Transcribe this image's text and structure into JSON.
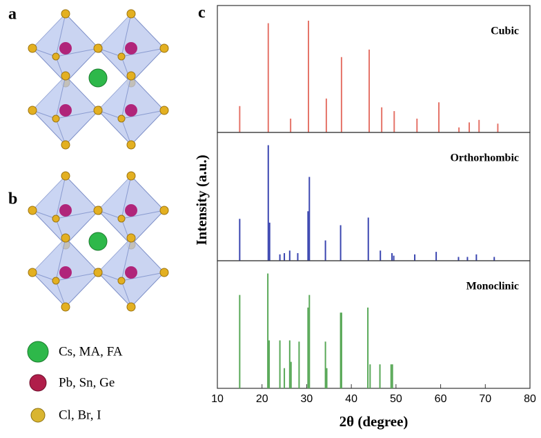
{
  "figure": {
    "panel_labels": [
      "a",
      "b",
      "c"
    ],
    "ylabel": "Intensity (a.u.)",
    "legend": [
      "Cs, MA, FA",
      "Pb, Sn, Ge",
      "Cl, Br, I"
    ]
  },
  "chart_data": [
    {
      "type": "stick",
      "title": "Cubic",
      "color": "#e57368",
      "x": [
        15.0,
        21.4,
        26.4,
        30.4,
        34.4,
        37.8,
        44.0,
        46.8,
        49.6,
        54.7,
        59.6,
        64.1,
        66.4,
        68.6,
        72.8
      ],
      "values": [
        21,
        87,
        11,
        89,
        27,
        60,
        66,
        20,
        17,
        11,
        24,
        4,
        8,
        10,
        7
      ],
      "xlim": [
        10,
        80
      ],
      "ylim": [
        0,
        100
      ]
    },
    {
      "type": "stick",
      "title": "Orthorhombic",
      "color": "#3a45b0",
      "x": [
        15.0,
        21.4,
        21.7,
        24.0,
        25.0,
        26.2,
        28.0,
        30.3,
        30.6,
        34.2,
        37.6,
        43.8,
        46.5,
        49.1,
        49.5,
        54.2,
        59.0,
        64.0,
        66.0,
        68.0,
        72.0
      ],
      "values": [
        33,
        91,
        30,
        5,
        6,
        8,
        6,
        39,
        66,
        16,
        28,
        34,
        8,
        6,
        4,
        5,
        7,
        3,
        3,
        5,
        3
      ],
      "xlim": [
        10,
        80
      ],
      "ylim": [
        0,
        100
      ]
    },
    {
      "type": "stick",
      "title": "Monoclinic",
      "color": "#58a857",
      "x": [
        15.0,
        21.3,
        21.6,
        24.0,
        25.0,
        26.2,
        26.5,
        28.3,
        30.3,
        30.6,
        34.2,
        34.5,
        37.6,
        37.8,
        43.7,
        44.2,
        46.4,
        48.9,
        49.2
      ],
      "values": [
        74,
        91,
        38,
        38,
        16,
        38,
        21,
        37,
        64,
        74,
        37,
        16,
        60,
        60,
        64,
        19,
        19,
        19,
        19
      ],
      "xlim": [
        10,
        80
      ],
      "ylim": [
        0,
        100
      ],
      "xticks": [
        10,
        20,
        30,
        40,
        50,
        60,
        70,
        80
      ],
      "xlabel": "2θ (degree)"
    }
  ]
}
